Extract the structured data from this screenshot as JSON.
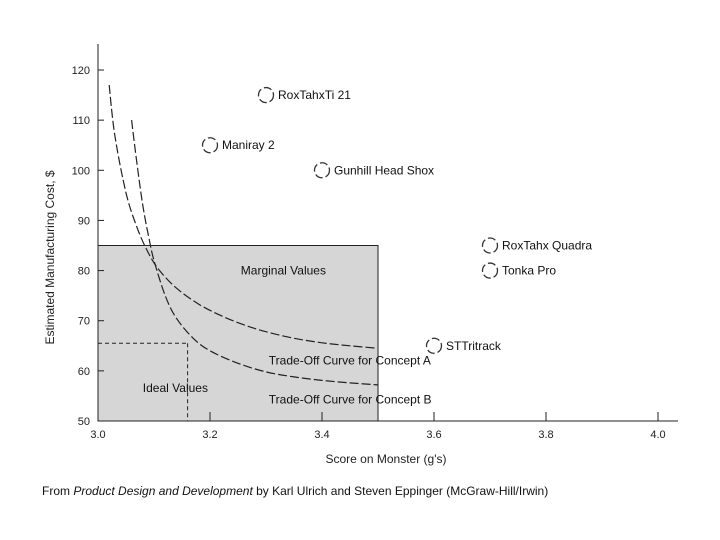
{
  "chart_data": {
    "type": "scatter",
    "title": "",
    "xlabel": "Score on Monster (g's)",
    "ylabel": "Estimated Manufacturing Cost, $",
    "xlim": [
      3.0,
      4.0
    ],
    "ylim": [
      50,
      120
    ],
    "xticks": [
      "3.0",
      "3.2",
      "3.4",
      "3.6",
      "3.8",
      "4.0"
    ],
    "yticks": [
      "50",
      "60",
      "70",
      "80",
      "90",
      "100",
      "110",
      "120"
    ],
    "grid": false,
    "points": [
      {
        "label": "RoxTahxTi 21",
        "x": 3.3,
        "y": 115
      },
      {
        "label": "Maniray 2",
        "x": 3.2,
        "y": 105
      },
      {
        "label": "Gunhill Head Shox",
        "x": 3.4,
        "y": 100
      },
      {
        "label": "RoxTahx Quadra",
        "x": 3.7,
        "y": 85
      },
      {
        "label": "Tonka Pro",
        "x": 3.7,
        "y": 80
      },
      {
        "label": "STTritrack",
        "x": 3.6,
        "y": 65
      }
    ],
    "regions": [
      {
        "label": "Marginal Values",
        "x": [
          3.0,
          3.5
        ],
        "y": [
          50,
          85
        ]
      },
      {
        "label": "Ideal Values",
        "x": [
          3.0,
          3.16
        ],
        "y": [
          50,
          65.5
        ]
      }
    ],
    "ideal_point": {
      "x": 3.16,
      "y": 65.5
    },
    "curves": [
      {
        "label": "Trade-Off Curve for Concept A",
        "x": [
          3.02,
          3.03,
          3.05,
          3.07,
          3.09,
          3.11,
          3.14,
          3.18,
          3.22,
          3.26,
          3.3,
          3.35,
          3.4,
          3.45,
          3.5
        ],
        "y": [
          117,
          107,
          95.5,
          88.5,
          83.5,
          80,
          76.5,
          73.3,
          71,
          69.2,
          67.8,
          66.5,
          65.6,
          65,
          64.5
        ]
      },
      {
        "label": "Trade-Off Curve for Concept B",
        "x": [
          3.06,
          3.07,
          3.08,
          3.09,
          3.1,
          3.12,
          3.14,
          3.17,
          3.2,
          3.25,
          3.3,
          3.35,
          3.4,
          3.45,
          3.5
        ],
        "y": [
          110,
          101,
          93,
          87,
          82,
          75,
          70.5,
          66.5,
          64,
          61.5,
          59.8,
          58.8,
          58.1,
          57.6,
          57.2
        ]
      }
    ],
    "curve_labels": [
      {
        "label": "Trade-Off Curve for Concept A",
        "x": 3.305,
        "y": 61.3
      },
      {
        "label": "Trade-Off Curve for Concept B",
        "x": 3.305,
        "y": 53.5
      }
    ],
    "region_label_pos": [
      {
        "label": "Marginal Values",
        "x": 3.255,
        "y": 79.2
      },
      {
        "label": "Ideal Values",
        "x": 3.08,
        "y": 55.8
      }
    ]
  },
  "caption": {
    "prefix": "From ",
    "title": "Product Design and Development",
    "suffix": " by Karl Ulrich and Steven Eppinger (McGraw-Hill/Irwin)"
  },
  "colors": {
    "region_fill": "#d6d6d6",
    "line": "#222222",
    "marker": "#333333"
  }
}
